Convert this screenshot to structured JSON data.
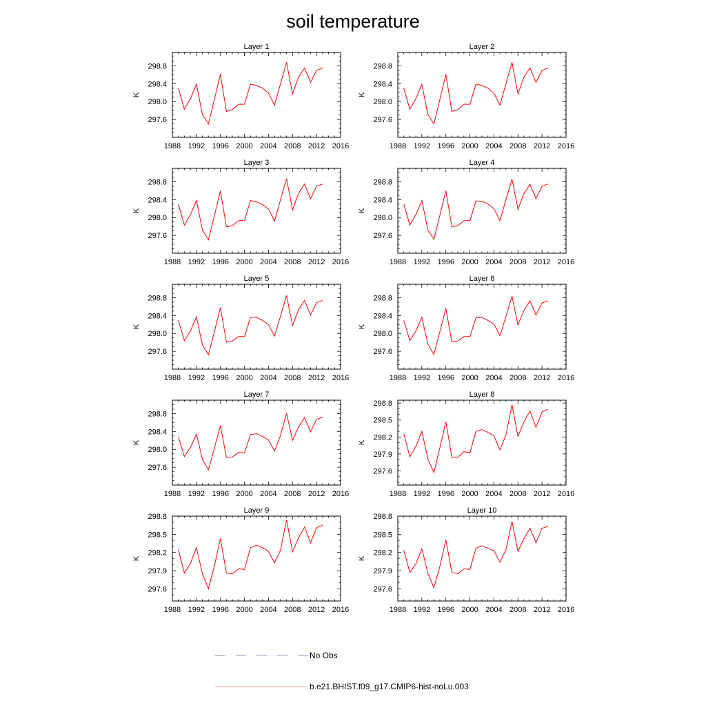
{
  "title": "soil temperature",
  "chart_data": {
    "type": "line",
    "xticks": [
      "1988",
      "1992",
      "1996",
      "2000",
      "2004",
      "2008",
      "2012",
      "2016"
    ],
    "xlim": [
      1988,
      2016
    ],
    "x": [
      1989,
      1990,
      1991,
      1992,
      1993,
      1994,
      1995,
      1996,
      1997,
      1998,
      1999,
      2000,
      2001,
      2002,
      2003,
      2004,
      2005,
      2006,
      2007,
      2008,
      2009,
      2010,
      2011,
      2012,
      2013
    ],
    "line_color": "#ff0000",
    "panels": [
      {
        "title": "Layer 1",
        "ylabel": "K",
        "ylim": [
          297.2,
          299.1
        ],
        "yticks": [
          "297.6",
          "298.0",
          "298.4",
          "298.8"
        ],
        "values": [
          298.3,
          297.83,
          298.06,
          298.39,
          297.71,
          297.5,
          298.05,
          298.61,
          297.78,
          297.82,
          297.94,
          297.94,
          298.39,
          298.36,
          298.3,
          298.19,
          297.92,
          298.4,
          298.88,
          298.17,
          298.55,
          298.75,
          298.43,
          298.7,
          298.75
        ]
      },
      {
        "title": "Layer 2",
        "ylabel": "K",
        "ylim": [
          297.2,
          299.1
        ],
        "yticks": [
          "297.6",
          "298.0",
          "298.4",
          "298.8"
        ],
        "values": [
          298.3,
          297.83,
          298.06,
          298.39,
          297.71,
          297.5,
          298.05,
          298.61,
          297.78,
          297.82,
          297.94,
          297.94,
          298.39,
          298.36,
          298.3,
          298.19,
          297.92,
          298.4,
          298.88,
          298.17,
          298.55,
          298.75,
          298.43,
          298.7,
          298.75
        ]
      },
      {
        "title": "Layer 3",
        "ylabel": "K",
        "ylim": [
          297.2,
          299.1
        ],
        "yticks": [
          "297.6",
          "298.0",
          "298.4",
          "298.8"
        ],
        "values": [
          298.3,
          297.83,
          298.06,
          298.38,
          297.72,
          297.5,
          298.05,
          298.6,
          297.79,
          297.82,
          297.93,
          297.93,
          298.38,
          298.35,
          298.29,
          298.19,
          297.92,
          298.4,
          298.87,
          298.17,
          298.54,
          298.75,
          298.42,
          298.7,
          298.75
        ]
      },
      {
        "title": "Layer 4",
        "ylabel": "K",
        "ylim": [
          297.2,
          299.1
        ],
        "yticks": [
          "297.6",
          "298.0",
          "298.4",
          "298.8"
        ],
        "values": [
          298.3,
          297.83,
          298.06,
          298.38,
          297.72,
          297.51,
          298.05,
          298.6,
          297.79,
          297.82,
          297.93,
          297.93,
          298.37,
          298.36,
          298.3,
          298.2,
          297.93,
          298.4,
          298.86,
          298.18,
          298.54,
          298.74,
          298.42,
          298.7,
          298.75
        ]
      },
      {
        "title": "Layer 5",
        "ylabel": "K",
        "ylim": [
          297.2,
          299.1
        ],
        "yticks": [
          "297.6",
          "298.0",
          "298.4",
          "298.8"
        ],
        "values": [
          298.29,
          297.84,
          298.05,
          298.37,
          297.74,
          297.52,
          298.04,
          298.58,
          297.8,
          297.83,
          297.93,
          297.93,
          298.36,
          298.36,
          298.29,
          298.2,
          297.94,
          298.39,
          298.85,
          298.18,
          298.53,
          298.74,
          298.41,
          298.69,
          298.74
        ]
      },
      {
        "title": "Layer 6",
        "ylabel": "K",
        "ylim": [
          297.2,
          299.1
        ],
        "yticks": [
          "297.6",
          "298.0",
          "298.4",
          "298.8"
        ],
        "values": [
          298.29,
          297.84,
          298.05,
          298.36,
          297.76,
          297.53,
          298.04,
          298.56,
          297.81,
          297.83,
          297.93,
          297.93,
          298.35,
          298.36,
          298.29,
          298.21,
          297.95,
          298.38,
          298.83,
          298.19,
          298.52,
          298.73,
          298.41,
          298.68,
          298.73
        ]
      },
      {
        "title": "Layer 7",
        "ylabel": "K",
        "ylim": [
          297.2,
          299.1
        ],
        "yticks": [
          "297.6",
          "298.0",
          "298.4",
          "298.8"
        ],
        "values": [
          298.28,
          297.84,
          298.04,
          298.34,
          297.78,
          297.54,
          298.03,
          298.53,
          297.82,
          297.83,
          297.93,
          297.92,
          298.33,
          298.35,
          298.29,
          298.21,
          297.96,
          298.31,
          298.81,
          298.2,
          298.5,
          298.71,
          298.39,
          298.67,
          298.72
        ]
      },
      {
        "title": "Layer 8",
        "ylabel": "K",
        "ylim": [
          297.35,
          298.85
        ],
        "yticks": [
          "297.6",
          "297.9",
          "298.2",
          "298.5",
          "298.8"
        ],
        "values": [
          298.26,
          297.85,
          298.03,
          298.3,
          297.81,
          297.57,
          298.01,
          298.47,
          297.84,
          297.84,
          297.94,
          297.92,
          298.3,
          298.33,
          298.28,
          298.22,
          297.97,
          298.24,
          298.77,
          298.21,
          298.47,
          298.66,
          298.37,
          298.64,
          298.69
        ]
      },
      {
        "title": "Layer 9",
        "ylabel": "K",
        "ylim": [
          297.4,
          298.8
        ],
        "yticks": [
          "297.6",
          "297.9",
          "298.2",
          "298.5",
          "298.8"
        ],
        "values": [
          298.25,
          297.86,
          298.02,
          298.28,
          297.85,
          297.6,
          297.98,
          298.43,
          297.86,
          297.85,
          297.93,
          297.92,
          298.28,
          298.32,
          298.28,
          298.22,
          298.03,
          298.24,
          298.74,
          298.21,
          298.44,
          298.62,
          298.36,
          298.61,
          298.65
        ]
      },
      {
        "title": "Layer 10",
        "ylabel": "K",
        "ylim": [
          297.4,
          298.8
        ],
        "yticks": [
          "297.6",
          "297.9",
          "298.2",
          "298.5",
          "298.8"
        ],
        "values": [
          298.24,
          297.87,
          298.01,
          298.26,
          297.86,
          297.62,
          297.97,
          298.41,
          297.87,
          297.85,
          297.93,
          297.92,
          298.27,
          298.31,
          298.27,
          298.23,
          298.04,
          298.25,
          298.71,
          298.22,
          298.43,
          298.6,
          298.36,
          298.6,
          298.63
        ]
      }
    ],
    "legend": [
      {
        "label": "No Obs",
        "style": "dashed",
        "color": "#6666cc"
      },
      {
        "label": "b.e21.BHIST.f09_g17.CMIP6-hist-noLu.003",
        "style": "solid",
        "color": "#ff7777"
      }
    ]
  }
}
